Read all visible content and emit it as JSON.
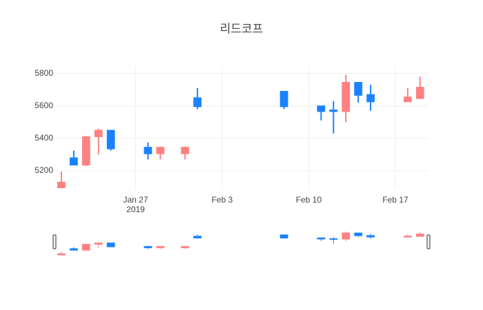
{
  "chart_data": {
    "type": "candlestick",
    "title": "리드코프",
    "x": [
      "2019-01-21",
      "2019-01-22",
      "2019-01-23",
      "2019-01-24",
      "2019-01-25",
      "2019-01-28",
      "2019-01-29",
      "2019-01-31",
      "2019-02-01",
      "2019-02-08",
      "2019-02-11",
      "2019-02-12",
      "2019-02-13",
      "2019-02-14",
      "2019-02-15",
      "2019-02-18",
      "2019-02-19"
    ],
    "open": [
      5095,
      5280,
      5235,
      5410,
      5450,
      5345,
      5305,
      5305,
      5650,
      5690,
      5600,
      5575,
      5565,
      5745,
      5670,
      5625,
      5645
    ],
    "high": [
      5195,
      5325,
      5415,
      5460,
      5450,
      5375,
      5350,
      5350,
      5710,
      5690,
      5600,
      5630,
      5790,
      5745,
      5730,
      5710,
      5780
    ],
    "low": [
      5095,
      5235,
      5230,
      5300,
      5325,
      5270,
      5270,
      5270,
      5580,
      5580,
      5510,
      5430,
      5500,
      5620,
      5570,
      5625,
      5645
    ],
    "close": [
      5130,
      5235,
      5410,
      5450,
      5335,
      5305,
      5345,
      5345,
      5595,
      5595,
      5565,
      5565,
      5745,
      5665,
      5625,
      5655,
      5715
    ],
    "increasing_color": "#ff8080",
    "decreasing_color": "#1a82ff",
    "xlim": [
      "2019-01-20T12:00",
      "2019-02-19T15:00"
    ],
    "xticks": [
      {
        "value": "2019-01-27",
        "label": "Jan 27\n2019"
      },
      {
        "value": "2019-02-03",
        "label": "Feb 3"
      },
      {
        "value": "2019-02-10",
        "label": "Feb 10"
      },
      {
        "value": "2019-02-17",
        "label": "Feb 17"
      }
    ],
    "ylim": [
      5085,
      5845
    ],
    "yticks": [
      5200,
      5400,
      5600,
      5800
    ],
    "grid": true,
    "rangeslider": true
  }
}
